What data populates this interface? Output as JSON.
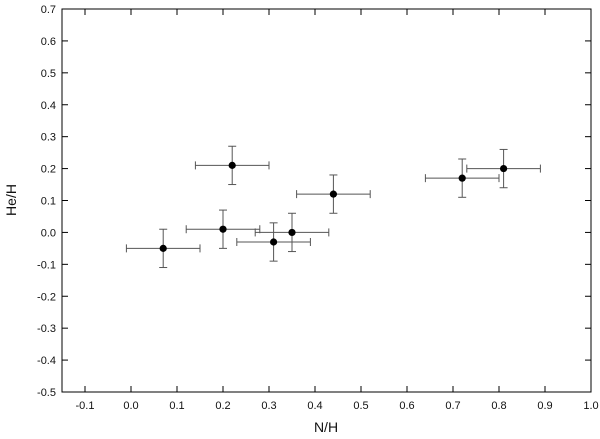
{
  "chart_data": {
    "type": "scatter",
    "xlabel": "N/H",
    "ylabel": "He/H",
    "xlim": [
      -0.15,
      1.0
    ],
    "ylim": [
      -0.5,
      0.7
    ],
    "x_ticks": [
      "-0.1",
      "0.0",
      "0.1",
      "0.2",
      "0.3",
      "0.4",
      "0.5",
      "0.6",
      "0.7",
      "0.8",
      "0.9",
      "1.0"
    ],
    "y_ticks": [
      "-0.5",
      "-0.4",
      "-0.3",
      "-0.2",
      "-0.1",
      "0.0",
      "0.1",
      "0.2",
      "0.3",
      "0.4",
      "0.5",
      "0.6",
      "0.7"
    ],
    "grid": false,
    "series": [
      {
        "points": [
          {
            "x": 0.07,
            "y": -0.05,
            "xerr": 0.08,
            "yerr": 0.06
          },
          {
            "x": 0.2,
            "y": 0.01,
            "xerr": 0.08,
            "yerr": 0.06
          },
          {
            "x": 0.22,
            "y": 0.21,
            "xerr": 0.08,
            "yerr": 0.06
          },
          {
            "x": 0.31,
            "y": -0.03,
            "xerr": 0.08,
            "yerr": 0.06
          },
          {
            "x": 0.35,
            "y": 0.0,
            "xerr": 0.08,
            "yerr": 0.06
          },
          {
            "x": 0.44,
            "y": 0.12,
            "xerr": 0.08,
            "yerr": 0.06
          },
          {
            "x": 0.72,
            "y": 0.17,
            "xerr": 0.08,
            "yerr": 0.06
          },
          {
            "x": 0.81,
            "y": 0.2,
            "xerr": 0.08,
            "yerr": 0.06
          }
        ]
      }
    ],
    "colors": {
      "marker": "#000000",
      "errorbar": "#555555",
      "axis": "#000000"
    }
  }
}
